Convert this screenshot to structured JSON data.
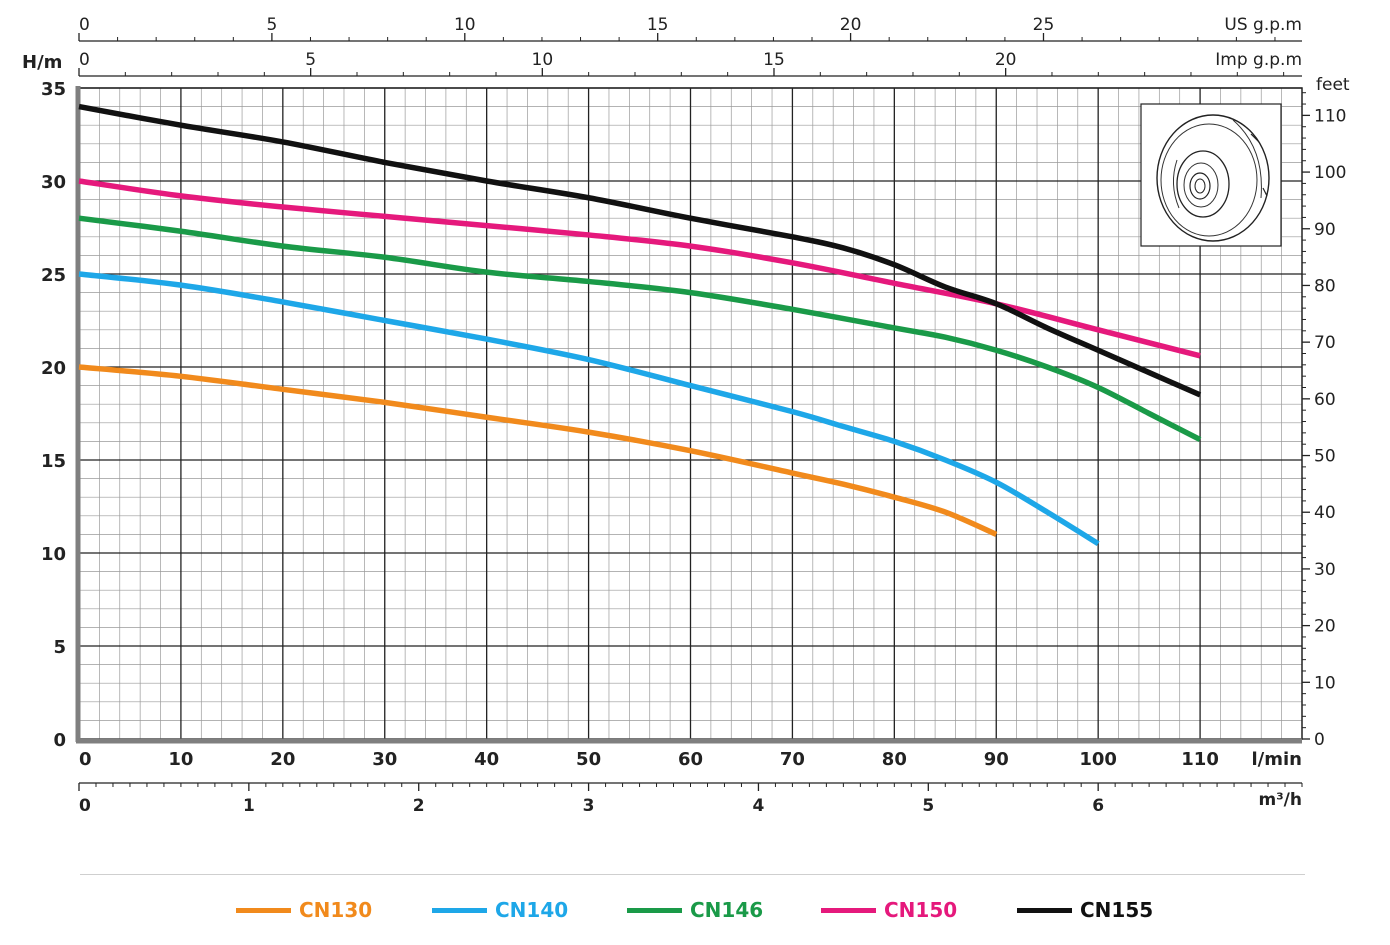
{
  "chart_data": {
    "type": "line",
    "title": "",
    "x_axis": {
      "label": "l/min",
      "min": 0,
      "max": 120,
      "ticks": [
        0,
        10,
        20,
        30,
        40,
        50,
        60,
        70,
        80,
        90,
        100,
        110
      ],
      "minor_step": 2
    },
    "x_axis_m3h": {
      "label": "m³/h",
      "ticks": [
        0,
        1,
        2,
        3,
        4,
        5,
        6
      ],
      "minor_step": 0.1
    },
    "x_axis_us_gpm": {
      "label": "US g.p.m",
      "ticks": [
        0,
        5,
        10,
        15,
        20,
        25
      ],
      "minor_step": 1
    },
    "x_axis_imp_gpm": {
      "label": "Imp g.p.m",
      "ticks": [
        0,
        5,
        10,
        15,
        20
      ],
      "minor_step": 1
    },
    "y_axis": {
      "label": "H/m",
      "min": 0,
      "max": 35,
      "ticks": [
        0,
        5,
        10,
        15,
        20,
        25,
        30,
        35
      ],
      "minor_step": 1
    },
    "y_axis_feet": {
      "label": "feet",
      "ticks": [
        0,
        10,
        20,
        30,
        40,
        50,
        60,
        70,
        80,
        90,
        100,
        110
      ],
      "minor_step": 2
    },
    "grid": true,
    "legend_position": "bottom",
    "series": [
      {
        "name": "CN130",
        "color": "#f18a1c",
        "x": [
          0,
          10,
          20,
          30,
          40,
          50,
          60,
          70,
          75,
          80,
          85,
          90
        ],
        "y": [
          20.0,
          19.5,
          18.8,
          18.1,
          17.3,
          16.5,
          15.5,
          14.3,
          13.7,
          13.0,
          12.2,
          11.0
        ]
      },
      {
        "name": "CN140",
        "color": "#1ea7e8",
        "x": [
          0,
          10,
          20,
          30,
          40,
          50,
          60,
          70,
          75,
          80,
          85,
          90,
          95,
          100
        ],
        "y": [
          25.0,
          24.4,
          23.5,
          22.5,
          21.5,
          20.4,
          19.0,
          17.6,
          16.8,
          16.0,
          15.0,
          13.8,
          12.2,
          10.5
        ]
      },
      {
        "name": "CN146",
        "color": "#1a9a48",
        "x": [
          0,
          10,
          20,
          30,
          40,
          50,
          60,
          70,
          80,
          85,
          90,
          95,
          100,
          105,
          110
        ],
        "y": [
          28.0,
          27.3,
          26.5,
          25.9,
          25.1,
          24.6,
          24.0,
          23.1,
          22.1,
          21.6,
          20.9,
          20.0,
          18.9,
          17.5,
          16.1
        ]
      },
      {
        "name": "CN150",
        "color": "#e5197c",
        "x": [
          0,
          10,
          20,
          30,
          40,
          50,
          60,
          70,
          80,
          90,
          100,
          110
        ],
        "y": [
          30.0,
          29.2,
          28.6,
          28.1,
          27.6,
          27.1,
          26.5,
          25.6,
          24.5,
          23.4,
          22.0,
          20.6
        ]
      },
      {
        "name": "CN155",
        "color": "#111111",
        "x": [
          0,
          10,
          20,
          30,
          40,
          50,
          60,
          70,
          75,
          80,
          85,
          90,
          95,
          100,
          105,
          110
        ],
        "y": [
          34.0,
          33.0,
          32.1,
          31.0,
          30.0,
          29.1,
          28.0,
          27.0,
          26.4,
          25.5,
          24.3,
          23.4,
          22.1,
          20.9,
          19.7,
          18.5
        ]
      }
    ]
  },
  "inset": {
    "icon": "impeller-icon"
  }
}
